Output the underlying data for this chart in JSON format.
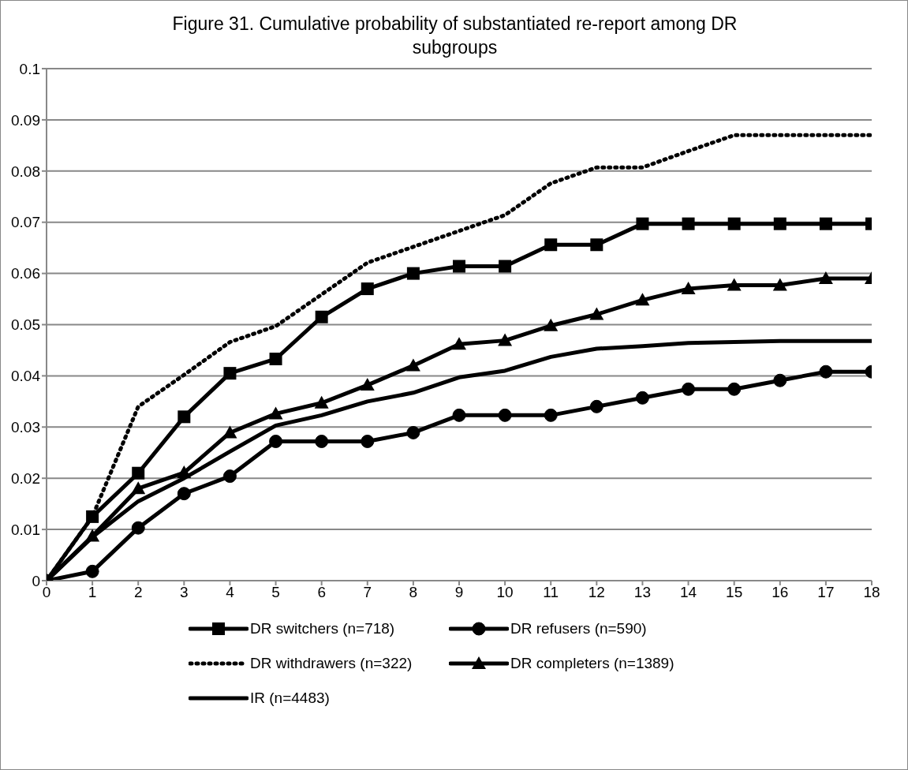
{
  "chart_data": {
    "type": "line",
    "title": "Figure 31.  Cumulative probability of substantiated re-report among DR subgroups",
    "x": [
      0,
      1,
      2,
      3,
      4,
      5,
      6,
      7,
      8,
      9,
      10,
      11,
      12,
      13,
      14,
      15,
      16,
      17,
      18
    ],
    "xlim": [
      0,
      18
    ],
    "xticks": [
      0,
      1,
      2,
      3,
      4,
      5,
      6,
      7,
      8,
      9,
      10,
      11,
      12,
      13,
      14,
      15,
      16,
      17,
      18
    ],
    "ylim": [
      0,
      0.1
    ],
    "yticks": [
      0,
      0.01,
      0.02,
      0.03,
      0.04,
      0.05,
      0.06,
      0.07,
      0.08,
      0.09,
      0.1
    ],
    "grid": "y",
    "legend": "bottom",
    "series": [
      {
        "name": "DR switchers (n=718)",
        "color": "#000000",
        "marker": "square",
        "line_style": "solid",
        "values": [
          0,
          0.0125,
          0.021,
          0.032,
          0.0405,
          0.0433,
          0.0515,
          0.057,
          0.06,
          0.0614,
          0.0614,
          0.0656,
          0.0656,
          0.0697,
          0.0697,
          0.0697,
          0.0697,
          0.0697,
          0.0697
        ]
      },
      {
        "name": "DR refusers (n=590)",
        "color": "#000000",
        "marker": "circle",
        "line_style": "solid",
        "values": [
          0,
          0.0018,
          0.0103,
          0.017,
          0.0204,
          0.0272,
          0.0272,
          0.0272,
          0.0289,
          0.0323,
          0.0323,
          0.0323,
          0.034,
          0.0357,
          0.0374,
          0.0374,
          0.0391,
          0.0408,
          0.0408
        ]
      },
      {
        "name": "DR withdrawers (n=322)",
        "color": "#000000",
        "marker": "none",
        "line_style": "dotted",
        "values": [
          0,
          0.0125,
          0.034,
          0.0402,
          0.0466,
          0.0497,
          0.0559,
          0.0621,
          0.0652,
          0.0683,
          0.0714,
          0.0776,
          0.0807,
          0.0807,
          0.0839,
          0.087,
          0.087,
          0.087,
          0.087
        ]
      },
      {
        "name": "DR completers (n=1389)",
        "color": "#000000",
        "marker": "triangle",
        "line_style": "solid",
        "values": [
          0,
          0.0087,
          0.018,
          0.0211,
          0.0289,
          0.0326,
          0.0347,
          0.0382,
          0.042,
          0.0462,
          0.0469,
          0.0498,
          0.052,
          0.0548,
          0.057,
          0.0577,
          0.0577,
          0.059,
          0.059
        ]
      },
      {
        "name": "IR (n=4483)",
        "color": "#000000",
        "marker": "none",
        "line_style": "solid",
        "values": [
          0,
          0.0085,
          0.0155,
          0.02,
          0.0252,
          0.0303,
          0.0323,
          0.035,
          0.0367,
          0.0397,
          0.041,
          0.0437,
          0.0453,
          0.0458,
          0.0464,
          0.0466,
          0.0468,
          0.0468,
          0.0468
        ]
      }
    ]
  }
}
